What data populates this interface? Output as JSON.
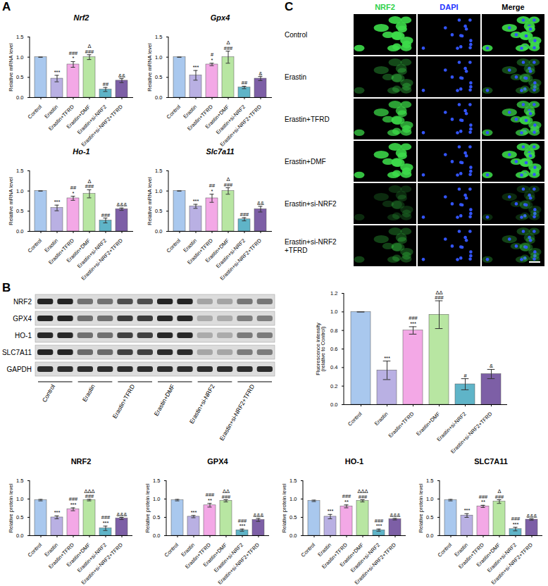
{
  "panel_labels": [
    "A",
    "B",
    "C"
  ],
  "chart_data": [
    {
      "type": "bar",
      "title": "Nrf2",
      "ylabel": "Relative mRNA level",
      "categories": [
        "Control",
        "Erastin",
        "Erastin+TFRD",
        "Erastin+DMF",
        "Erastin+si-NRF2",
        "Erastin+si-NRF2+TFRD"
      ],
      "values": [
        1.0,
        0.47,
        0.82,
        1.0,
        0.2,
        0.42
      ],
      "errors": [
        0,
        0.08,
        0.07,
        0.06,
        0.05,
        0.05
      ],
      "annotations": [
        [],
        [
          "***"
        ],
        [
          "###",
          "*"
        ],
        [
          "Δ",
          "###"
        ],
        [
          "##"
        ],
        [
          "&&"
        ]
      ],
      "colors": [
        "#a9c8ee",
        "#b9b0e3",
        "#f3a8e6",
        "#b8e6a2",
        "#5fb4c8",
        "#7d5fa6"
      ],
      "ylim": [
        0,
        1.5
      ],
      "yticks": [
        {
          "value": 0,
          "label": "0.0"
        },
        0.5,
        {
          "value": 1,
          "label": "1.0"
        },
        1.5
      ]
    },
    {
      "type": "bar",
      "title": "Gpx4",
      "ylabel": "Relative mRNA level",
      "categories": [
        "Control",
        "Erastin",
        "Erastin+TFRD",
        "Erastin+DMF",
        "Erastin+si-NRF2",
        "Erastin+si-NRF2+TFRD"
      ],
      "values": [
        1.0,
        0.55,
        0.82,
        1.0,
        0.25,
        0.47
      ],
      "errors": [
        0,
        0.12,
        0.03,
        0.15,
        0.03,
        0.05
      ],
      "annotations": [
        [],
        [
          "***"
        ],
        [
          "#",
          "*"
        ],
        [
          "Δ",
          "###"
        ],
        [
          "##"
        ],
        [
          "&"
        ]
      ],
      "colors": [
        "#a9c8ee",
        "#b9b0e3",
        "#f3a8e6",
        "#b8e6a2",
        "#5fb4c8",
        "#7d5fa6"
      ],
      "ylim": [
        0,
        1.5
      ],
      "yticks": [
        {
          "value": 0,
          "label": "0.0"
        },
        0.5,
        {
          "value": 1,
          "label": "1.0"
        },
        1.5
      ]
    },
    {
      "type": "bar",
      "title": "Ho-1",
      "ylabel": "Relative mRNA level",
      "categories": [
        "Control",
        "Erastin",
        "Erastin+TFRD",
        "Erastin+DMF",
        "Erastin+si-NRF2",
        "Erastin+si-NRF2+TFRD"
      ],
      "values": [
        1.0,
        0.58,
        0.82,
        0.93,
        0.27,
        0.55
      ],
      "errors": [
        0,
        0.07,
        0.05,
        0.1,
        0.06,
        0.03
      ],
      "annotations": [
        [],
        [
          "***"
        ],
        [
          "##",
          "*"
        ],
        [
          "Δ",
          "###"
        ],
        [
          "###"
        ],
        [
          "&&&"
        ]
      ],
      "colors": [
        "#a9c8ee",
        "#b9b0e3",
        "#f3a8e6",
        "#b8e6a2",
        "#5fb4c8",
        "#7d5fa6"
      ],
      "ylim": [
        0,
        1.5
      ],
      "yticks": [
        {
          "value": 0,
          "label": "0.0"
        },
        0.5,
        {
          "value": 1,
          "label": "1.0"
        },
        1.5
      ]
    },
    {
      "type": "bar",
      "title": "Slc7a11",
      "ylabel": "Relative mRNA level",
      "categories": [
        "Control",
        "Erastin",
        "Erastin+TFRD",
        "Erastin+DMF",
        "Erastin+si-NRF2",
        "Erastin+si-NRF2+TFRD"
      ],
      "values": [
        1.0,
        0.62,
        0.82,
        1.0,
        0.3,
        0.55
      ],
      "errors": [
        0,
        0.05,
        0.1,
        0.08,
        0.04,
        0.07
      ],
      "annotations": [
        [],
        [
          "***"
        ],
        [
          "##",
          "*"
        ],
        [
          "Δ",
          "###"
        ],
        [
          "###"
        ],
        [
          "&&"
        ]
      ],
      "colors": [
        "#a9c8ee",
        "#b9b0e3",
        "#f3a8e6",
        "#b8e6a2",
        "#5fb4c8",
        "#7d5fa6"
      ],
      "ylim": [
        0,
        1.5
      ],
      "yticks": [
        {
          "value": 0,
          "label": "0.0"
        },
        0.5,
        {
          "value": 1,
          "label": "1.0"
        },
        1.5
      ]
    },
    {
      "type": "bar",
      "title": "NRF2",
      "ylabel": "Relative protein level",
      "categories": [
        "Control",
        "Erastin",
        "Erastin+TFRD",
        "Erastin+DMF",
        "Erastin+si-NRF2",
        "Erastin+si-NRF2+TFRD"
      ],
      "values": [
        0.97,
        0.5,
        0.72,
        0.97,
        0.2,
        0.47
      ],
      "errors": [
        0.02,
        0.04,
        0.04,
        0.02,
        0.06,
        0.03
      ],
      "annotations": [
        [],
        [
          "***"
        ],
        [
          "###",
          "***"
        ],
        [
          "ΔΔΔ",
          "###"
        ],
        [
          "###",
          "***"
        ],
        [
          "&&&"
        ]
      ],
      "colors": [
        "#a9c8ee",
        "#b9b0e3",
        "#f3a8e6",
        "#b8e6a2",
        "#5fb4c8",
        "#7d5fa6"
      ],
      "ylim": [
        0,
        1.5
      ],
      "yticks": [
        {
          "value": 0,
          "label": "0.0"
        },
        0.5,
        {
          "value": 1,
          "label": "1.0"
        },
        1.5
      ]
    },
    {
      "type": "bar",
      "title": "GPX4",
      "ylabel": "Relative protein level",
      "categories": [
        "Control",
        "Erastin",
        "Erastin+TFRD",
        "Erastin+DMF",
        "Erastin+si-NRF2",
        "Erastin+si-NRF2+TFRD"
      ],
      "values": [
        0.97,
        0.52,
        0.83,
        0.95,
        0.15,
        0.43
      ],
      "errors": [
        0.02,
        0.03,
        0.05,
        0.03,
        0.03,
        0.04
      ],
      "annotations": [
        [],
        [
          "***"
        ],
        [
          "###",
          "**"
        ],
        [
          "ΔΔ",
          "###"
        ],
        [
          "###",
          "***"
        ],
        [
          "&&&"
        ]
      ],
      "colors": [
        "#a9c8ee",
        "#b9b0e3",
        "#f3a8e6",
        "#b8e6a2",
        "#5fb4c8",
        "#7d5fa6"
      ],
      "ylim": [
        0,
        1.5
      ],
      "yticks": [
        {
          "value": 0,
          "label": "0.0"
        },
        0.5,
        {
          "value": 1,
          "label": "1.0"
        },
        1.5
      ]
    },
    {
      "type": "bar",
      "title": "HO-1",
      "ylabel": "Relative protein level",
      "categories": [
        "Control",
        "Erastin",
        "Erastin+TFRD",
        "Erastin+DMF",
        "Erastin+si-NRF2",
        "Erastin+si-NRF2+TFRD"
      ],
      "values": [
        0.95,
        0.52,
        0.8,
        0.95,
        0.15,
        0.45
      ],
      "errors": [
        0.02,
        0.06,
        0.04,
        0.03,
        0.03,
        0.02
      ],
      "annotations": [
        [],
        [
          "***"
        ],
        [
          "###",
          "**"
        ],
        [
          "ΔΔΔ",
          "###"
        ],
        [
          "###",
          "***"
        ],
        [
          "&&&"
        ]
      ],
      "colors": [
        "#a9c8ee",
        "#b9b0e3",
        "#f3a8e6",
        "#b8e6a2",
        "#5fb4c8",
        "#7d5fa6"
      ],
      "ylim": [
        0,
        1.5
      ],
      "yticks": [
        {
          "value": 0,
          "label": "0.0"
        },
        0.5,
        {
          "value": 1,
          "label": "1.0"
        },
        1.5
      ]
    },
    {
      "type": "bar",
      "title": "SLC7A11",
      "ylabel": "Relative protein level",
      "categories": [
        "Control",
        "Erastin",
        "Erastin+TFRD",
        "Erastin+DMF",
        "Erastin+si-NRF2",
        "Erastin+si-NRF2+TFRD"
      ],
      "values": [
        0.97,
        0.55,
        0.8,
        0.93,
        0.18,
        0.44
      ],
      "errors": [
        0.02,
        0.05,
        0.03,
        0.05,
        0.05,
        0.02
      ],
      "annotations": [
        [],
        [
          "***"
        ],
        [
          "###",
          "**"
        ],
        [
          "Δ",
          "###"
        ],
        [
          "###",
          "***"
        ],
        [
          "&&&"
        ]
      ],
      "colors": [
        "#a9c8ee",
        "#b9b0e3",
        "#f3a8e6",
        "#b8e6a2",
        "#5fb4c8",
        "#7d5fa6"
      ],
      "ylim": [
        0,
        1.5
      ],
      "yticks": [
        {
          "value": 0,
          "label": "0.0"
        },
        0.5,
        {
          "value": 1,
          "label": "1.0"
        },
        1.5
      ]
    },
    {
      "type": "bar",
      "ylabel": "Fluorescence intensity (relative to Control)",
      "categories": [
        "Control",
        "Erastin",
        "Erastin+TFRD",
        "Erastin+DMF",
        "Erastin+si-NRF2",
        "Erastin+si-NRF2+TFRD"
      ],
      "values": [
        1.0,
        0.37,
        0.8,
        0.97,
        0.22,
        0.33
      ],
      "errors": [
        0,
        0.1,
        0.04,
        0.15,
        0.06,
        0.05
      ],
      "annotations": [
        [],
        [
          "***"
        ],
        [
          "###",
          "***"
        ],
        [
          "ΔΔ",
          "###"
        ],
        [
          "#"
        ],
        [
          "&"
        ]
      ],
      "colors": [
        "#a9c8ee",
        "#b9b0e3",
        "#f3a8e6",
        "#b8e6a2",
        "#5fb4c8",
        "#7d5fa6"
      ],
      "ylim": [
        0,
        1.2
      ],
      "yticks": [
        {
          "value": 0,
          "label": "0.0"
        },
        0.2,
        0.4,
        0.6,
        0.8,
        {
          "value": 1,
          "label": "1.0"
        },
        1.2
      ]
    }
  ],
  "blot": {
    "rows": [
      "NRF2",
      "GPX4",
      "HO-1",
      "SLC7A11",
      "GAPDH"
    ],
    "groups": [
      "Control",
      "Erastin",
      "Erastin+TFRD",
      "Erastin+DMF",
      "Erastin+si-NRF2",
      "Erastin+si-NRF2+TFRD"
    ]
  },
  "images": {
    "columns": [
      "NRF2",
      "DAPI",
      "Merge"
    ],
    "colors": [
      "#2fd14a",
      "#2233ff",
      "#000000"
    ],
    "rows": [
      "Control",
      "Erastin",
      "Erastin+TFRD",
      "Erastin+DMF",
      "Erastin+si-NRF2",
      "Erastin+si-NRF2+TFRD"
    ]
  }
}
